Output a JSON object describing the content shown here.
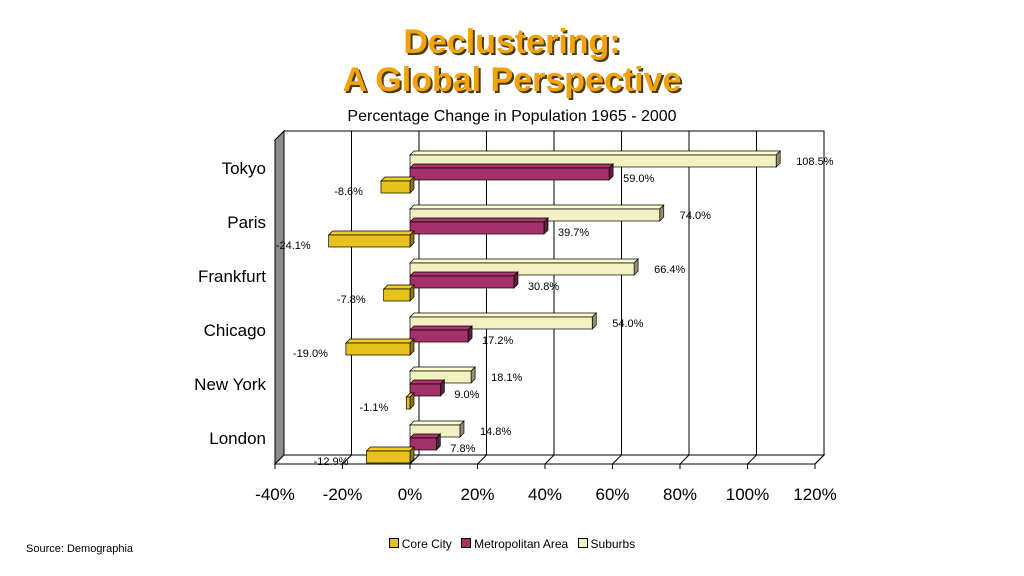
{
  "title": {
    "line1": "Declustering:",
    "line2": "A Global Perspective"
  },
  "subtitle": "Percentage Change in Population 1965 - 2000",
  "source": "Source: Demographia",
  "colors": {
    "core": "#e8c21c",
    "metro": "#a3326a",
    "suburbs": "#f3f0c2",
    "title": "#f2a20a"
  },
  "chart_data": {
    "type": "bar",
    "orientation": "horizontal",
    "categories": [
      "Tokyo",
      "Paris",
      "Frankfurt",
      "Chicago",
      "New York",
      "London"
    ],
    "series": [
      {
        "name": "Core City",
        "values": [
          -8.6,
          -24.1,
          -7.8,
          -19.0,
          -1.1,
          -12.9
        ],
        "labels": [
          "-8.6%",
          "-24.1%",
          "-7.8%",
          "-19.0%",
          "-1.1%",
          "-12.9%"
        ]
      },
      {
        "name": "Metropolitan Area",
        "values": [
          59.0,
          39.7,
          30.8,
          17.2,
          9.0,
          7.8
        ],
        "labels": [
          "59.0%",
          "39.7%",
          "30.8%",
          "17.2%",
          "9.0%",
          "7.8%"
        ]
      },
      {
        "name": "Suburbs",
        "values": [
          108.5,
          74.0,
          66.4,
          54.0,
          18.1,
          14.8
        ],
        "labels": [
          "108.5%",
          "74.0%",
          "66.4%",
          "54.0%",
          "18.1%",
          "14.8%"
        ]
      }
    ],
    "xlim": [
      -40,
      120
    ],
    "x_ticks": [
      "-40%",
      "-20%",
      "0%",
      "20%",
      "40%",
      "60%",
      "80%",
      "100%",
      "120%"
    ],
    "grid": true,
    "legend": "bottom"
  }
}
